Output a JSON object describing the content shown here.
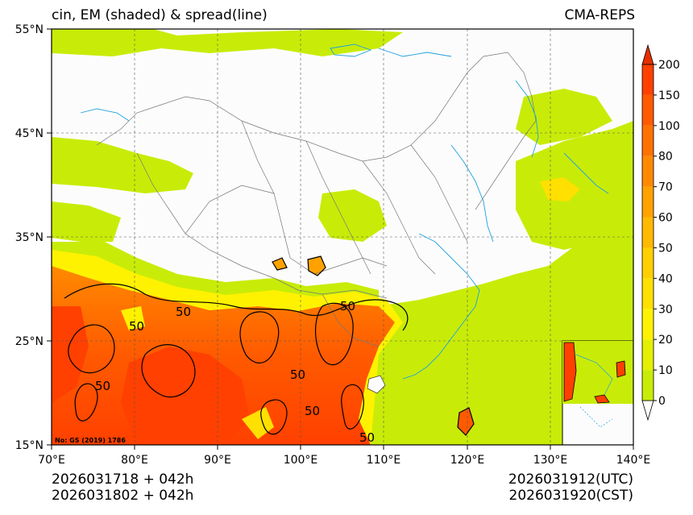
{
  "header": {
    "title_left": "cin, EM (shaded) & spread(line)",
    "title_right": "CMA-REPS"
  },
  "map": {
    "lat_labels": [
      "55°N",
      "45°N",
      "35°N",
      "25°N",
      "15°N"
    ],
    "lon_labels": [
      "70°E",
      "80°E",
      "90°E",
      "100°E",
      "110°E",
      "120°E",
      "130°E",
      "140°E"
    ],
    "contour_labels": [
      "50",
      "50",
      "50",
      "50",
      "50",
      "50",
      "50"
    ],
    "copyright": "No: GS (2019) 1786"
  },
  "colorbar": {
    "levels": [
      "0",
      "10",
      "20",
      "30",
      "40",
      "50",
      "60",
      "70",
      "80",
      "100",
      "150",
      "200"
    ],
    "colors": [
      "#c8ec08",
      "#e4f000",
      "#fff200",
      "#ffe000",
      "#ffcf00",
      "#ffb900",
      "#ffa200",
      "#ff8a00",
      "#ff7200",
      "#ff5a00",
      "#ff4000",
      "#e62e00"
    ]
  },
  "footer": {
    "init_utc": "2026031718  +  042h",
    "init_cst": "2026031802  +  042h",
    "valid_utc": "2026031912(UTC)",
    "valid_cst": "2026031920(CST)"
  }
}
